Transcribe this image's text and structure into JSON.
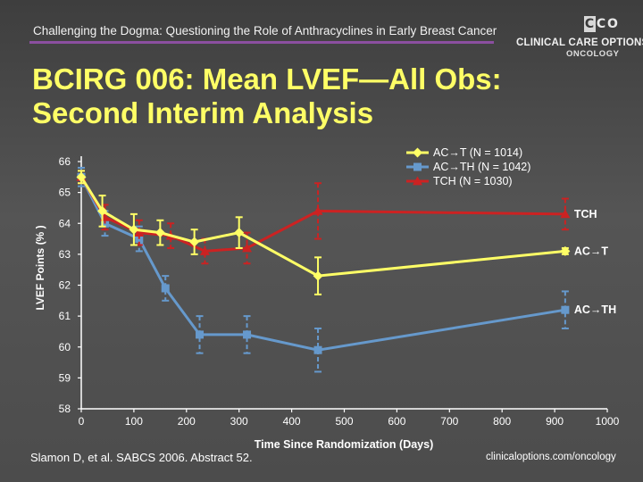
{
  "header": {
    "title": "Challenging the Dogma: Questioning the Role of Anthracyclines in Early Breast Cancer"
  },
  "logo": {
    "letters": [
      "C",
      "C",
      "O"
    ],
    "line1": "CLINICAL CARE OPTIONS",
    "line2": "ONCOLOGY"
  },
  "slide": {
    "title_line1": "BCIRG 006: Mean LVEF—All Obs:",
    "title_line2": "Second Interim Analysis"
  },
  "colors": {
    "ACT": "#ffff66",
    "ACTH": "#6699cc",
    "TCH": "#cc2222",
    "axis": "#ffffff",
    "label_text": "#ffffff"
  },
  "chart_data": {
    "type": "line",
    "xlabel": "Time Since Randomization (Days)",
    "ylabel": "LVEF Points (% )",
    "xlim": [
      0,
      1000
    ],
    "ylim": [
      58,
      66
    ],
    "xticks": [
      0,
      100,
      200,
      300,
      400,
      500,
      600,
      700,
      800,
      900,
      1000
    ],
    "yticks": [
      58,
      59,
      60,
      61,
      62,
      63,
      64,
      65,
      66
    ],
    "legend_position": "top-right",
    "series": [
      {
        "name": "AC→T (N = 1014)",
        "short_label": "AC→T",
        "color_key": "ACT",
        "marker": "diamond",
        "x": [
          0,
          40,
          100,
          150,
          215,
          300,
          450,
          920
        ],
        "y": [
          65.5,
          64.4,
          63.8,
          63.7,
          63.4,
          63.7,
          62.3,
          63.1
        ],
        "err": [
          0.2,
          0.5,
          0.5,
          0.4,
          0.4,
          0.5,
          0.6,
          0.1
        ]
      },
      {
        "name": "AC→TH (N = 1042)",
        "short_label": "AC→TH",
        "color_key": "ACTH",
        "marker": "square",
        "x": [
          0,
          45,
          110,
          160,
          225,
          315,
          450,
          920
        ],
        "y": [
          65.5,
          64.0,
          63.5,
          61.9,
          60.4,
          60.4,
          59.9,
          61.2
        ],
        "err": [
          0.3,
          0.4,
          0.4,
          0.4,
          0.6,
          0.6,
          0.7,
          0.6
        ]
      },
      {
        "name": "TCH (N = 1030)",
        "short_label": "TCH",
        "color_key": "TCH",
        "marker": "triangle",
        "x": [
          0,
          45,
          110,
          170,
          235,
          315,
          450,
          920
        ],
        "y": [
          65.5,
          64.2,
          63.7,
          63.6,
          63.1,
          63.2,
          64.4,
          64.3
        ],
        "err": [
          0.2,
          0.4,
          0.4,
          0.4,
          0.4,
          0.5,
          0.9,
          0.5
        ]
      }
    ]
  },
  "citation": "Slamon D, et al. SABCS 2006. Abstract 52.",
  "footer_url": "clinicaloptions.com/oncology"
}
